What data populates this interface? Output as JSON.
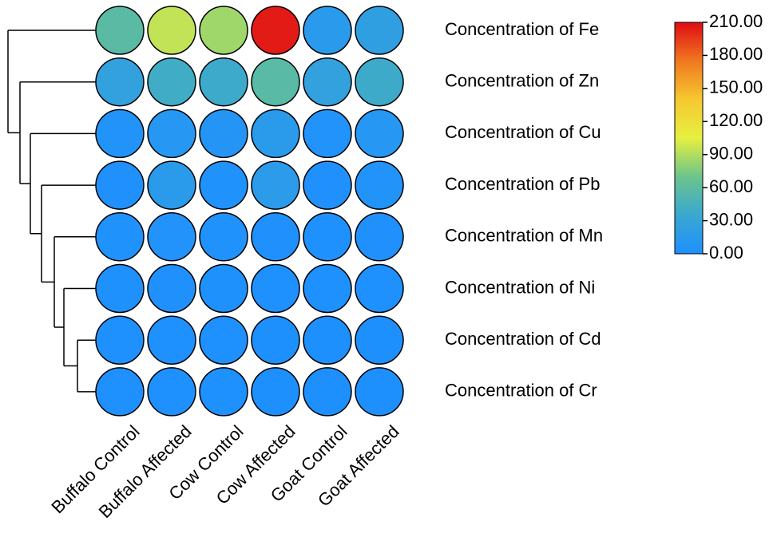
{
  "chart_data": {
    "type": "heatmap",
    "categories": [
      "Buffalo Control",
      "Buffalo Affected",
      "Cow Control",
      "Cow Affected",
      "Goat Control",
      "Goat Affected"
    ],
    "rows": [
      "Concentration of Fe",
      "Concentration of Zn",
      "Concentration of Cu",
      "Concentration of Pb",
      "Concentration of Mn",
      "Concentration of Ni",
      "Concentration of Cd",
      "Concentration of Cr"
    ],
    "values": [
      [
        58,
        95,
        85,
        205,
        14,
        22
      ],
      [
        25,
        40,
        37,
        57,
        25,
        38
      ],
      [
        5,
        10,
        8,
        15,
        4,
        10
      ],
      [
        2,
        15,
        3,
        16,
        2,
        5
      ],
      [
        3,
        4,
        3,
        2,
        1,
        2
      ],
      [
        1.5,
        2,
        1.5,
        1,
        0.8,
        1
      ],
      [
        0.8,
        1,
        0.8,
        0.6,
        0.5,
        0.6
      ],
      [
        0.8,
        0.9,
        0.8,
        0.6,
        0.5,
        0.6
      ]
    ],
    "colorscale": [
      "#1e90ff",
      "#3aa8d0",
      "#6cc48c",
      "#e6f040",
      "#f6c830",
      "#f07820",
      "#e00c14"
    ],
    "ylim": [
      0,
      210
    ],
    "yticks": [
      {
        "value": 0,
        "label": "0.00"
      },
      {
        "value": 30,
        "label": "30.00"
      },
      {
        "value": 60,
        "label": "60.00"
      },
      {
        "value": 90,
        "label": "90.00"
      },
      {
        "value": 120,
        "label": "120.00"
      },
      {
        "value": 150,
        "label": "150.00"
      },
      {
        "value": 180,
        "label": "180.00"
      },
      {
        "value": 210,
        "label": "210.00"
      }
    ]
  }
}
